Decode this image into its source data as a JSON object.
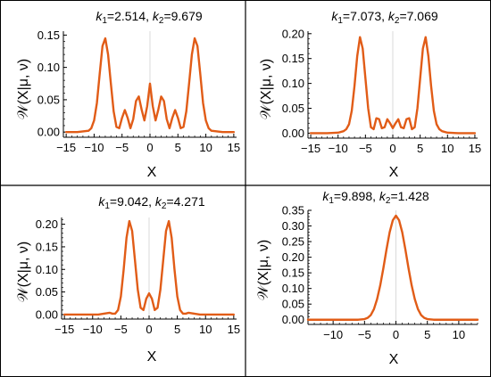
{
  "figure": {
    "border_color": "#000000",
    "line_color": "#e15c17",
    "axis_color": "#999999"
  },
  "chart_data": [
    {
      "type": "line",
      "title_parts": {
        "k1_sym": "k",
        "k1_sub": "1",
        "k1_val": "=2.514, ",
        "k2_sym": "k",
        "k2_sub": "2",
        "k2_val": "=9.679"
      },
      "xlabel": "X",
      "ylabel": "𝒲(X|μ, ν)",
      "xlim": [
        -15.5,
        15.5
      ],
      "ylim": [
        -0.008,
        0.156
      ],
      "xticks": [
        -15,
        -10,
        -5,
        0,
        5,
        10,
        15
      ],
      "xtick_labels": [
        "−15",
        "−10",
        "−5",
        "0",
        "5",
        "10",
        "15"
      ],
      "yticks": [
        0.0,
        0.05,
        0.1,
        0.15
      ],
      "ytick_labels": [
        "0.00",
        "0.05",
        "0.10",
        "0.15"
      ],
      "series": [
        {
          "x": [
            -15,
            -13,
            -11,
            -10.5,
            -10,
            -9.5,
            -9,
            -8.5,
            -8,
            -7.5,
            -7,
            -6.5,
            -6,
            -5.5,
            -5,
            -4.5,
            -4,
            -3.5,
            -3,
            -2.5,
            -2,
            -1.5,
            -1,
            -0.5,
            0,
            0.5,
            1,
            1.5,
            2,
            2.5,
            3,
            3.5,
            4,
            4.5,
            5,
            5.5,
            6,
            6.5,
            7,
            7.5,
            8,
            8.5,
            9,
            9.5,
            10,
            10.5,
            11,
            13,
            15
          ],
          "y": [
            0.0,
            0.0,
            0.002,
            0.006,
            0.018,
            0.045,
            0.09,
            0.133,
            0.145,
            0.12,
            0.075,
            0.032,
            0.008,
            0.006,
            0.022,
            0.034,
            0.022,
            0.006,
            0.02,
            0.048,
            0.055,
            0.035,
            0.018,
            0.04,
            0.075,
            0.04,
            0.018,
            0.035,
            0.055,
            0.048,
            0.02,
            0.006,
            0.022,
            0.034,
            0.022,
            0.006,
            0.008,
            0.032,
            0.075,
            0.12,
            0.145,
            0.133,
            0.09,
            0.045,
            0.018,
            0.006,
            0.002,
            0.0,
            0.0
          ]
        }
      ]
    },
    {
      "type": "line",
      "title_parts": {
        "k1_sym": "k",
        "k1_sub": "1",
        "k1_val": "=7.073, ",
        "k2_sym": "k",
        "k2_sub": "2",
        "k2_val": "=7.069"
      },
      "xlabel": "X",
      "ylabel": "𝒲(X|μ, ν)",
      "xlim": [
        -15.5,
        15.5
      ],
      "ylim": [
        -0.01,
        0.205
      ],
      "xticks": [
        -15,
        -10,
        -5,
        0,
        5,
        10,
        15
      ],
      "xtick_labels": [
        "−15",
        "−10",
        "−5",
        "0",
        "5",
        "10",
        "15"
      ],
      "yticks": [
        0.0,
        0.05,
        0.1,
        0.15,
        0.2
      ],
      "ytick_labels": [
        "0.00",
        "0.05",
        "0.10",
        "0.15",
        "0.20"
      ],
      "series": [
        {
          "x": [
            -15,
            -12,
            -10,
            -9,
            -8.5,
            -8,
            -7.5,
            -7,
            -6.5,
            -6,
            -5.5,
            -5,
            -4.5,
            -4,
            -3.5,
            -3,
            -2.5,
            -2,
            -1.5,
            -1,
            -0.5,
            0,
            0.5,
            1,
            1.5,
            2,
            2.5,
            3,
            3.5,
            4,
            4.5,
            5,
            5.5,
            6,
            6.5,
            7,
            7.5,
            8,
            8.5,
            9,
            10,
            12,
            15
          ],
          "y": [
            0.0,
            0.0,
            0.001,
            0.004,
            0.008,
            0.018,
            0.045,
            0.095,
            0.155,
            0.193,
            0.17,
            0.11,
            0.05,
            0.012,
            0.008,
            0.03,
            0.028,
            0.01,
            0.012,
            0.028,
            0.02,
            0.01,
            0.02,
            0.028,
            0.012,
            0.01,
            0.028,
            0.03,
            0.008,
            0.012,
            0.05,
            0.11,
            0.17,
            0.193,
            0.155,
            0.095,
            0.045,
            0.018,
            0.008,
            0.004,
            0.001,
            0.0,
            0.0
          ]
        }
      ]
    },
    {
      "type": "line",
      "title_parts": {
        "k1_sym": "k",
        "k1_sub": "1",
        "k1_val": "=9.042, ",
        "k2_sym": "k",
        "k2_sub": "2",
        "k2_val": "=4.271"
      },
      "xlabel": "X",
      "ylabel": "𝒲(X|μ, ν)",
      "xlim": [
        -15.5,
        15.5
      ],
      "ylim": [
        -0.01,
        0.215
      ],
      "xticks": [
        -15,
        -10,
        -5,
        0,
        5,
        10,
        15
      ],
      "xtick_labels": [
        "−15",
        "−10",
        "−5",
        "0",
        "5",
        "10",
        "15"
      ],
      "yticks": [
        0.0,
        0.05,
        0.1,
        0.15,
        0.2
      ],
      "ytick_labels": [
        "0.00",
        "0.05",
        "0.10",
        "0.15",
        "0.20"
      ],
      "series": [
        {
          "x": [
            -15,
            -9,
            -8,
            -7,
            -6.5,
            -6,
            -5.5,
            -5,
            -4.5,
            -4,
            -3.5,
            -3,
            -2.5,
            -2,
            -1.5,
            -1,
            -0.5,
            0,
            0.5,
            1,
            1.5,
            2,
            2.5,
            3,
            3.5,
            4,
            4.5,
            5,
            5.5,
            6,
            6.5,
            7,
            8,
            9,
            15
          ],
          "y": [
            0.0,
            0.0,
            0.002,
            0.004,
            0.002,
            0.002,
            0.01,
            0.04,
            0.1,
            0.17,
            0.207,
            0.185,
            0.12,
            0.055,
            0.015,
            0.01,
            0.035,
            0.047,
            0.035,
            0.01,
            0.015,
            0.055,
            0.12,
            0.185,
            0.207,
            0.17,
            0.1,
            0.04,
            0.01,
            0.002,
            0.002,
            0.004,
            0.002,
            0.0,
            0.0
          ]
        }
      ]
    },
    {
      "type": "line",
      "title_parts": {
        "k1_sym": "k",
        "k1_sub": "1",
        "k1_val": "=9.898, ",
        "k2_sym": "k",
        "k2_sub": "2",
        "k2_val": "=1.428"
      },
      "xlabel": "X",
      "ylabel": "𝒲(X|μ, ν)",
      "xlim": [
        -14,
        13
      ],
      "ylim": [
        -0.015,
        0.35
      ],
      "xticks": [
        -10,
        -5,
        0,
        5,
        10
      ],
      "xtick_labels": [
        "−10",
        "−5",
        "0",
        "5",
        "10"
      ],
      "yticks": [
        0.0,
        0.05,
        0.1,
        0.15,
        0.2,
        0.25,
        0.3,
        0.35
      ],
      "ytick_labels": [
        "0.00",
        "0.05",
        "0.10",
        "0.15",
        "0.20",
        "0.25",
        "0.30",
        "0.35"
      ],
      "series": [
        {
          "x": [
            -14,
            -8,
            -6,
            -5,
            -4.5,
            -4,
            -3.5,
            -3,
            -2.5,
            -2,
            -1.5,
            -1,
            -0.5,
            0,
            0.5,
            1,
            1.5,
            2,
            2.5,
            3,
            3.5,
            4,
            4.5,
            5,
            6,
            8,
            13
          ],
          "y": [
            0.0,
            0.0,
            0.0,
            0.002,
            0.006,
            0.015,
            0.034,
            0.066,
            0.11,
            0.165,
            0.225,
            0.28,
            0.318,
            0.333,
            0.318,
            0.28,
            0.225,
            0.165,
            0.11,
            0.066,
            0.034,
            0.015,
            0.006,
            0.002,
            0.0,
            0.0,
            0.0
          ]
        }
      ]
    }
  ]
}
